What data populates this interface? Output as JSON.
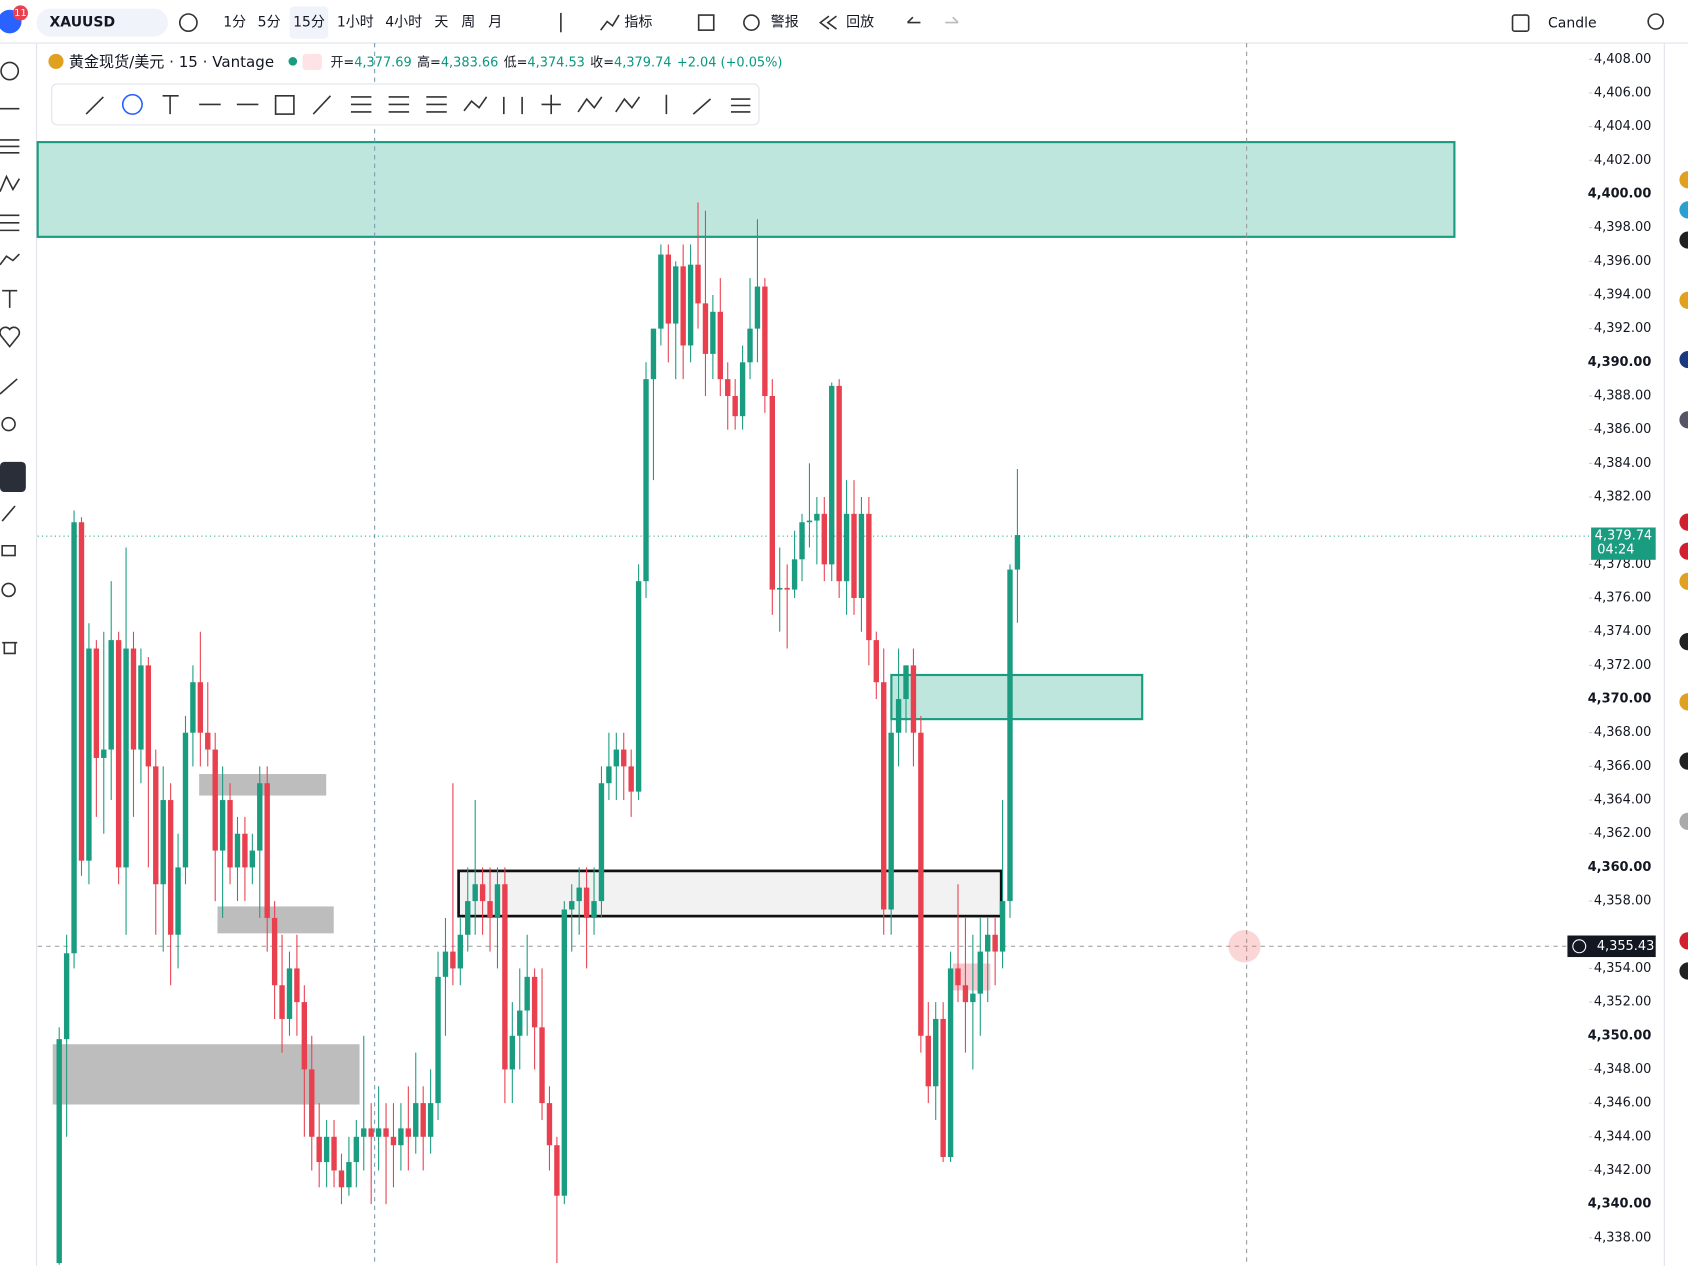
{
  "toolbar": {
    "symbol": "XAUUSD",
    "badge": "11",
    "intervals": [
      "1分",
      "5分",
      "15分",
      "1小时",
      "4小时",
      "天",
      "周",
      "月"
    ],
    "indicators": "指标",
    "alerts": "警报",
    "replay": "回放",
    "chart_style": "Candle"
  },
  "legend": {
    "title": "黄金现货/美元 · 15 · Vantage",
    "open_label": "开=",
    "open": "4,377.69",
    "high_label": "高=",
    "high": "4,383.66",
    "low_label": "低=",
    "low": "4,374.53",
    "close_label": "收=",
    "close": "4,379.74",
    "change": "+2.04 (+0.05%)"
  },
  "chart_data": {
    "type": "candlestick",
    "up_color": "#1a9c80",
    "down_color": "#e8404f",
    "ohlc": [
      [
        4336.5,
        4350.5,
        4336.4,
        4349.8
      ],
      [
        4349.8,
        4356,
        4344,
        4354.9
      ],
      [
        4354.9,
        4381.2,
        4354,
        4380.5
      ],
      [
        4380.5,
        4380.8,
        4359.5,
        4360.4
      ],
      [
        4360.4,
        4374.5,
        4359,
        4373
      ],
      [
        4373,
        4373.5,
        4363,
        4366.5
      ],
      [
        4366.5,
        4374,
        4362,
        4367
      ],
      [
        4367,
        4377,
        4364,
        4373.5
      ],
      [
        4373.5,
        4374,
        4359,
        4360
      ],
      [
        4360,
        4379,
        4356,
        4373
      ],
      [
        4373,
        4374,
        4363,
        4367
      ],
      [
        4367,
        4373,
        4365,
        4372
      ],
      [
        4372,
        4372.5,
        4360,
        4366
      ],
      [
        4366,
        4367,
        4356,
        4359
      ],
      [
        4359,
        4366,
        4355,
        4364
      ],
      [
        4364,
        4365,
        4353,
        4356
      ],
      [
        4356,
        4362,
        4354,
        4360
      ],
      [
        4360,
        4369,
        4359,
        4368
      ],
      [
        4368,
        4372,
        4366,
        4371
      ],
      [
        4371,
        4374,
        4366,
        4368
      ],
      [
        4368,
        4371,
        4366,
        4367
      ],
      [
        4367,
        4368,
        4358,
        4361
      ],
      [
        4361,
        4366,
        4357,
        4364
      ],
      [
        4364,
        4365,
        4359,
        4360
      ],
      [
        4360,
        4363,
        4358,
        4362
      ],
      [
        4362,
        4363,
        4358,
        4360
      ],
      [
        4360,
        4362,
        4359,
        4361
      ],
      [
        4361,
        4366,
        4357,
        4365
      ],
      [
        4365,
        4366,
        4355,
        4357
      ],
      [
        4357,
        4358,
        4351,
        4353
      ],
      [
        4353,
        4356,
        4349,
        4351
      ],
      [
        4351,
        4355,
        4350,
        4354
      ],
      [
        4354,
        4356,
        4350,
        4352
      ],
      [
        4352,
        4353,
        4344,
        4348
      ],
      [
        4348,
        4350,
        4342,
        4344
      ],
      [
        4344,
        4346,
        4341,
        4342.5
      ],
      [
        4342.5,
        4345,
        4341,
        4344
      ],
      [
        4344,
        4345,
        4341,
        4342
      ],
      [
        4342,
        4343,
        4340,
        4341
      ],
      [
        4341,
        4344,
        4340.5,
        4342.5
      ],
      [
        4342.5,
        4345,
        4341,
        4344
      ],
      [
        4344,
        4350,
        4342,
        4344.5
      ],
      [
        4344.5,
        4346,
        4340,
        4344
      ],
      [
        4344,
        4347,
        4342,
        4344.5
      ],
      [
        4344.5,
        4346,
        4340,
        4344
      ],
      [
        4344,
        4346,
        4341,
        4343.5
      ],
      [
        4343.5,
        4346,
        4342,
        4344.5
      ],
      [
        4344.5,
        4347,
        4342,
        4344
      ],
      [
        4344,
        4349,
        4343,
        4346
      ],
      [
        4346,
        4347,
        4342,
        4344
      ],
      [
        4344,
        4348,
        4343,
        4346
      ],
      [
        4346,
        4355,
        4345,
        4353.5
      ],
      [
        4353.5,
        4357,
        4350,
        4355
      ],
      [
        4355,
        4365,
        4353,
        4354
      ],
      [
        4354,
        4357,
        4353,
        4356
      ],
      [
        4356,
        4360,
        4355,
        4358
      ],
      [
        4358,
        4364,
        4356,
        4359
      ],
      [
        4359,
        4360,
        4356,
        4358
      ],
      [
        4358,
        4360,
        4355,
        4357
      ],
      [
        4357,
        4360,
        4354,
        4359
      ],
      [
        4359,
        4360,
        4346,
        4348
      ],
      [
        4348,
        4352,
        4346,
        4350
      ],
      [
        4350,
        4354,
        4348,
        4351.5
      ],
      [
        4351.5,
        4356,
        4350,
        4353.5
      ],
      [
        4353.5,
        4354,
        4348,
        4350.5
      ],
      [
        4350.5,
        4354,
        4345,
        4346
      ],
      [
        4346,
        4347,
        4342,
        4343.5
      ],
      [
        4343.5,
        4344,
        4336.5,
        4340.5
      ],
      [
        4340.5,
        4358,
        4340,
        4357.5
      ],
      [
        4357.5,
        4359,
        4355,
        4358
      ],
      [
        4358,
        4360,
        4356,
        4358.8
      ],
      [
        4358.8,
        4360,
        4354,
        4357
      ],
      [
        4357,
        4360,
        4356,
        4358
      ],
      [
        4358,
        4366,
        4357,
        4365
      ],
      [
        4365,
        4368,
        4364,
        4366
      ],
      [
        4366,
        4368,
        4364,
        4367
      ],
      [
        4367,
        4368,
        4364,
        4366
      ],
      [
        4366,
        4367,
        4363,
        4364.5
      ],
      [
        4364.5,
        4378,
        4364,
        4377
      ],
      [
        4377,
        4390,
        4376,
        4389
      ],
      [
        4389,
        4392,
        4383,
        4392
      ],
      [
        4392,
        4397,
        4391,
        4396.4
      ],
      [
        4396.4,
        4397,
        4390,
        4392.3
      ],
      [
        4392.3,
        4396,
        4389,
        4395.7
      ],
      [
        4395.7,
        4397,
        4389,
        4391
      ],
      [
        4391,
        4397,
        4390,
        4395.8
      ],
      [
        4395.8,
        4399.5,
        4392,
        4393.5
      ],
      [
        4393.5,
        4399,
        4388,
        4390.5
      ],
      [
        4390.5,
        4394,
        4389,
        4393
      ],
      [
        4393,
        4395,
        4388,
        4389
      ],
      [
        4389,
        4390,
        4386,
        4388
      ],
      [
        4388,
        4389,
        4386,
        4386.8
      ],
      [
        4386.8,
        4391,
        4386,
        4390
      ],
      [
        4390,
        4395,
        4389,
        4392
      ],
      [
        4392,
        4398.5,
        4390,
        4394.5
      ],
      [
        4394.5,
        4395,
        4387,
        4388
      ],
      [
        4388,
        4389,
        4375,
        4376.5
      ],
      [
        4376.5,
        4379,
        4374,
        4376.6
      ],
      [
        4376.6,
        4378,
        4373,
        4376.5
      ],
      [
        4376.5,
        4380,
        4376,
        4378.3
      ],
      [
        4378.3,
        4381,
        4377,
        4380.5
      ],
      [
        4380.5,
        4384,
        4379,
        4380.6
      ],
      [
        4380.6,
        4382,
        4378,
        4381
      ],
      [
        4381,
        4382,
        4377,
        4378
      ],
      [
        4378,
        4388.8,
        4377,
        4388.6
      ],
      [
        4388.6,
        4389,
        4376,
        4377
      ],
      [
        4377,
        4383,
        4375,
        4381
      ],
      [
        4381,
        4383,
        4375,
        4376
      ],
      [
        4376,
        4382,
        4374,
        4381
      ],
      [
        4381,
        4382,
        4372,
        4373.5
      ],
      [
        4373.5,
        4374,
        4370,
        4371
      ],
      [
        4371,
        4373,
        4356,
        4357.5
      ],
      [
        4357.5,
        4369,
        4356,
        4368
      ],
      [
        4368,
        4373,
        4366,
        4370
      ],
      [
        4370,
        4372,
        4368,
        4372
      ],
      [
        4372,
        4373,
        4366,
        4368
      ],
      [
        4368,
        4369,
        4349,
        4350
      ],
      [
        4350,
        4352,
        4346,
        4347
      ],
      [
        4347,
        4352,
        4345,
        4351
      ],
      [
        4351,
        4352,
        4342.5,
        4342.8
      ],
      [
        4342.8,
        4355,
        4342.5,
        4354
      ],
      [
        4354,
        4359,
        4352,
        4353
      ],
      [
        4353,
        4357,
        4349,
        4352
      ],
      [
        4352,
        4356,
        4348,
        4352.5
      ],
      [
        4352.5,
        4357,
        4350,
        4355
      ],
      [
        4355,
        4357,
        4352,
        4356
      ],
      [
        4356,
        4357,
        4353,
        4355
      ],
      [
        4355,
        4364,
        4354,
        4358
      ],
      [
        4358,
        4378,
        4357,
        4377.69
      ],
      [
        4377.69,
        4383.66,
        4374.53,
        4379.74
      ]
    ],
    "ylim": [
      4336.3,
      4409
    ],
    "yticks": [
      {
        "value": 4408,
        "label": "4,408.00"
      },
      {
        "value": 4406,
        "label": "4,406.00"
      },
      {
        "value": 4404,
        "label": "4,404.00"
      },
      {
        "value": 4402,
        "label": "4,402.00"
      },
      {
        "value": 4400,
        "label": "4,400.00"
      },
      {
        "value": 4398,
        "label": "4,398.00"
      },
      {
        "value": 4396,
        "label": "4,396.00"
      },
      {
        "value": 4394,
        "label": "4,394.00"
      },
      {
        "value": 4392,
        "label": "4,392.00"
      },
      {
        "value": 4390,
        "label": "4,390.00"
      },
      {
        "value": 4388,
        "label": "4,388.00"
      },
      {
        "value": 4386,
        "label": "4,386.00"
      },
      {
        "value": 4384,
        "label": "4,384.00"
      },
      {
        "value": 4382,
        "label": "4,382.00"
      },
      {
        "value": 4378,
        "label": "4,378.00"
      },
      {
        "value": 4376,
        "label": "4,376.00"
      },
      {
        "value": 4374,
        "label": "4,374.00"
      },
      {
        "value": 4372,
        "label": "4,372.00"
      },
      {
        "value": 4370,
        "label": "4,370.00"
      },
      {
        "value": 4368,
        "label": "4,368.00"
      },
      {
        "value": 4366,
        "label": "4,366.00"
      },
      {
        "value": 4364,
        "label": "4,364.00"
      },
      {
        "value": 4362,
        "label": "4,362.00"
      },
      {
        "value": 4360,
        "label": "4,360.00"
      },
      {
        "value": 4358,
        "label": "4,358.00"
      },
      {
        "value": 4354,
        "label": "4,354.00"
      },
      {
        "value": 4352,
        "label": "4,352.00"
      },
      {
        "value": 4350,
        "label": "4,350.00"
      },
      {
        "value": 4348,
        "label": "4,348.00"
      },
      {
        "value": 4346,
        "label": "4,346.00"
      },
      {
        "value": 4344,
        "label": "4,344.00"
      },
      {
        "value": 4342,
        "label": "4,342.00"
      },
      {
        "value": 4340,
        "label": "4,340.00"
      },
      {
        "value": 4338,
        "label": "4,338.00"
      }
    ],
    "last_price_label": "4,379.74",
    "countdown": "04:24",
    "crosshair_label": "4,355.43"
  }
}
